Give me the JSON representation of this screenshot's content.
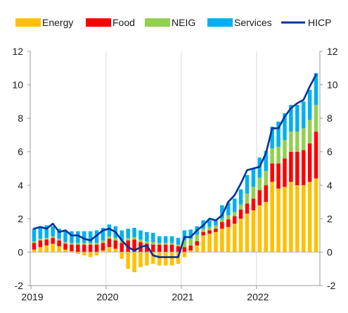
{
  "chart_data": {
    "type": "bar",
    "stacked": true,
    "title": "",
    "xlabel": "",
    "ylabel": "",
    "ylim": [
      -2,
      12
    ],
    "yticks": [
      -2,
      0,
      2,
      4,
      6,
      8,
      10,
      12
    ],
    "secondary_y_axis": true,
    "grid": "vertical lines at year boundaries",
    "legend_position": "top",
    "x_tick_labels": [
      "2019",
      "2020",
      "2021",
      "2022"
    ],
    "months": [
      "2019-01",
      "2019-02",
      "2019-03",
      "2019-04",
      "2019-05",
      "2019-06",
      "2019-07",
      "2019-08",
      "2019-09",
      "2019-10",
      "2019-11",
      "2019-12",
      "2020-01",
      "2020-02",
      "2020-03",
      "2020-04",
      "2020-05",
      "2020-06",
      "2020-07",
      "2020-08",
      "2020-09",
      "2020-10",
      "2020-11",
      "2020-12",
      "2021-01",
      "2021-02",
      "2021-03",
      "2021-04",
      "2021-05",
      "2021-06",
      "2021-07",
      "2021-08",
      "2021-09",
      "2021-10",
      "2021-11",
      "2021-12",
      "2022-01",
      "2022-02",
      "2022-03",
      "2022-04",
      "2022-05",
      "2022-06",
      "2022-07",
      "2022-08",
      "2022-09",
      "2022-10"
    ],
    "series": [
      {
        "name": "Energy",
        "type": "bar",
        "color": "#FFC000",
        "values": [
          0.15,
          0.3,
          0.4,
          0.5,
          0.35,
          0.15,
          0.05,
          -0.1,
          -0.2,
          -0.3,
          -0.2,
          0.1,
          0.3,
          0.2,
          -0.4,
          -1.0,
          -1.2,
          -0.9,
          -0.8,
          -0.7,
          -0.8,
          -0.8,
          -0.8,
          -0.7,
          -0.3,
          0.1,
          0.4,
          1.0,
          1.1,
          1.2,
          1.4,
          1.5,
          1.7,
          2.0,
          2.3,
          2.5,
          2.8,
          3.0,
          4.2,
          3.8,
          3.9,
          4.2,
          4.0,
          4.0,
          4.2,
          4.4
        ]
      },
      {
        "name": "Food",
        "type": "bar",
        "color": "#FF0000",
        "values": [
          0.4,
          0.4,
          0.35,
          0.35,
          0.35,
          0.35,
          0.4,
          0.45,
          0.45,
          0.45,
          0.45,
          0.45,
          0.5,
          0.5,
          0.55,
          0.7,
          0.75,
          0.6,
          0.5,
          0.45,
          0.45,
          0.45,
          0.45,
          0.35,
          0.3,
          0.3,
          0.25,
          0.2,
          0.2,
          0.2,
          0.4,
          0.45,
          0.45,
          0.55,
          0.6,
          0.7,
          0.9,
          1.0,
          1.1,
          1.5,
          1.7,
          1.8,
          2.0,
          2.1,
          2.3,
          2.8
        ]
      },
      {
        "name": "NEIG",
        "type": "bar",
        "color": "#92D050",
        "values": [
          0.1,
          0.1,
          0.1,
          0.1,
          0.1,
          0.1,
          0.1,
          0.1,
          0.1,
          0.1,
          0.1,
          0.15,
          0.15,
          0.15,
          0.15,
          0.15,
          0.15,
          0.15,
          0.15,
          0.15,
          0.1,
          0.1,
          0.1,
          0.1,
          0.4,
          0.4,
          0.4,
          0.2,
          0.2,
          0.2,
          0.2,
          0.25,
          0.25,
          0.3,
          0.6,
          0.7,
          0.75,
          0.85,
          0.9,
          1.0,
          1.1,
          1.2,
          1.2,
          1.3,
          1.4,
          1.6
        ]
      },
      {
        "name": "Services",
        "type": "bar",
        "color": "#00B0F0",
        "values": [
          0.75,
          0.75,
          0.75,
          0.6,
          0.6,
          0.7,
          0.7,
          0.7,
          0.7,
          0.7,
          0.75,
          0.75,
          0.7,
          0.7,
          0.6,
          0.55,
          0.55,
          0.55,
          0.55,
          0.55,
          0.4,
          0.4,
          0.4,
          0.4,
          0.6,
          0.55,
          0.5,
          0.5,
          0.4,
          0.3,
          0.8,
          0.75,
          0.8,
          0.9,
          1.1,
          1.1,
          1.2,
          1.2,
          1.3,
          1.5,
          1.6,
          1.6,
          1.6,
          1.6,
          1.8,
          1.9
        ]
      },
      {
        "name": "HICP",
        "type": "line",
        "color": "#003299",
        "values": [
          1.4,
          1.5,
          1.4,
          1.7,
          1.2,
          1.3,
          1.0,
          1.0,
          0.8,
          0.7,
          1.0,
          1.3,
          1.4,
          1.2,
          0.7,
          0.3,
          0.1,
          0.3,
          0.4,
          -0.2,
          -0.3,
          -0.3,
          -0.3,
          -0.3,
          0.9,
          0.9,
          1.3,
          1.6,
          2.0,
          1.9,
          2.2,
          3.0,
          3.4,
          4.1,
          4.9,
          5.0,
          5.1,
          5.9,
          7.4,
          7.4,
          8.1,
          8.6,
          8.9,
          9.1,
          9.9,
          10.6
        ]
      }
    ]
  }
}
